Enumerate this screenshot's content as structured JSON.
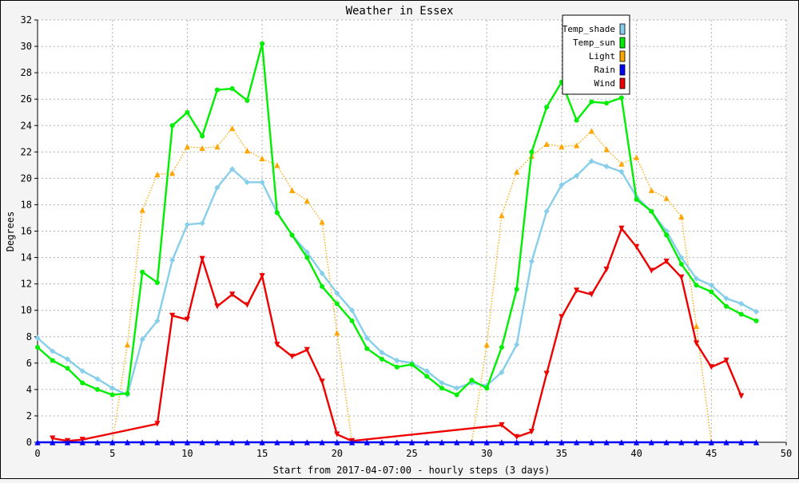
{
  "chart_data": {
    "type": "line",
    "title": "Weather in Essex",
    "xlabel": "Start from 2017-04-07:00 - hourly steps (3 days)",
    "ylabel": "Degrees",
    "xlim": [
      0,
      50
    ],
    "ylim": [
      0,
      32
    ],
    "x_ticks": [
      0,
      5,
      10,
      15,
      20,
      25,
      30,
      35,
      40,
      45,
      50
    ],
    "y_ticks": [
      0,
      2,
      4,
      6,
      8,
      10,
      12,
      14,
      16,
      18,
      20,
      22,
      24,
      26,
      28,
      30,
      32
    ],
    "grid": true,
    "legend_position": "top-right",
    "series": [
      {
        "name": "Temp_shade",
        "color": "#87ceeb",
        "marker": "diamond",
        "line_style": "solid",
        "x": [
          0,
          1,
          2,
          3,
          4,
          5,
          6,
          7,
          8,
          9,
          10,
          11,
          12,
          13,
          14,
          15,
          16,
          17,
          18,
          19,
          20,
          21,
          22,
          23,
          24,
          25,
          26,
          27,
          28,
          29,
          30,
          31,
          32,
          33,
          34,
          35,
          36,
          37,
          38,
          39,
          40,
          41,
          42,
          43,
          44,
          45,
          46,
          47,
          48
        ],
        "values": [
          7.9,
          6.9,
          6.3,
          5.4,
          4.8,
          4.1,
          3.6,
          7.8,
          9.2,
          13.8,
          16.5,
          16.6,
          19.3,
          20.7,
          19.7,
          19.7,
          17.4,
          15.7,
          14.4,
          12.8,
          11.3,
          10.0,
          7.9,
          6.8,
          6.2,
          6.0,
          5.4,
          4.5,
          4.1,
          4.5,
          4.3,
          5.3,
          7.4,
          13.7,
          17.5,
          19.5,
          20.2,
          21.3,
          20.9,
          20.5,
          18.6,
          17.5,
          16.0,
          14.0,
          12.4,
          11.9,
          10.9,
          10.5,
          9.9
        ]
      },
      {
        "name": "Temp_sun",
        "color": "#00ee00",
        "marker": "circle",
        "line_style": "solid",
        "x": [
          0,
          1,
          2,
          3,
          4,
          5,
          6,
          7,
          8,
          9,
          10,
          11,
          12,
          13,
          14,
          15,
          16,
          17,
          18,
          19,
          20,
          21,
          22,
          23,
          24,
          25,
          26,
          27,
          28,
          29,
          30,
          31,
          32,
          33,
          34,
          35,
          36,
          37,
          38,
          39,
          40,
          41,
          42,
          43,
          44,
          45,
          46,
          47,
          48
        ],
        "values": [
          7.2,
          6.2,
          5.6,
          4.5,
          4.0,
          3.6,
          3.7,
          12.9,
          12.1,
          24.0,
          25.0,
          23.2,
          26.7,
          26.8,
          25.9,
          30.2,
          17.4,
          15.7,
          14.0,
          11.8,
          10.5,
          9.2,
          7.1,
          6.3,
          5.7,
          5.9,
          5.0,
          4.1,
          3.6,
          4.7,
          4.1,
          7.2,
          11.6,
          22.0,
          25.4,
          27.3,
          24.4,
          25.8,
          25.7,
          26.1,
          18.4,
          17.5,
          15.7,
          13.5,
          11.9,
          11.4,
          10.3,
          9.7,
          9.2
        ]
      },
      {
        "name": "Light",
        "color": "#ffa500",
        "marker": "triangle-up",
        "line_style": "dotted",
        "x": [
          0,
          1,
          2,
          3,
          4,
          5,
          6,
          7,
          8,
          9,
          10,
          11,
          12,
          13,
          14,
          15,
          16,
          17,
          18,
          19,
          20,
          21,
          22,
          23,
          24,
          25,
          26,
          27,
          28,
          29,
          30,
          31,
          32,
          33,
          34,
          35,
          36,
          37,
          38,
          39,
          40,
          41,
          42,
          43,
          44,
          45,
          46,
          47,
          48
        ],
        "values": [
          0,
          0,
          0,
          0,
          0,
          0,
          7.4,
          17.6,
          20.3,
          20.4,
          22.4,
          22.3,
          22.4,
          23.8,
          22.1,
          21.5,
          21.0,
          19.1,
          18.3,
          16.7,
          8.3,
          0,
          0,
          0,
          0,
          0,
          0,
          0,
          0,
          0,
          7.4,
          17.2,
          20.5,
          21.7,
          22.6,
          22.4,
          22.5,
          23.6,
          22.2,
          21.1,
          21.6,
          19.1,
          18.5,
          17.1,
          8.8,
          0,
          0,
          0,
          0
        ]
      },
      {
        "name": "Rain",
        "color": "#0000ff",
        "marker": "triangle-up",
        "line_style": "solid",
        "x": [
          0,
          1,
          2,
          3,
          4,
          5,
          6,
          7,
          8,
          9,
          10,
          11,
          12,
          13,
          14,
          15,
          16,
          17,
          18,
          19,
          20,
          21,
          22,
          23,
          24,
          25,
          26,
          27,
          28,
          29,
          30,
          31,
          32,
          33,
          34,
          35,
          36,
          37,
          38,
          39,
          40,
          41,
          42,
          43,
          44,
          45,
          46,
          47,
          48
        ],
        "values": [
          0,
          0,
          0,
          0,
          0,
          0,
          0,
          0,
          0,
          0,
          0,
          0,
          0,
          0,
          0,
          0,
          0,
          0,
          0,
          0,
          0,
          0,
          0,
          0,
          0,
          0,
          0,
          0,
          0,
          0,
          0,
          0,
          0,
          0,
          0,
          0,
          0,
          0,
          0,
          0,
          0,
          0,
          0,
          0,
          0,
          0,
          0,
          0,
          0
        ]
      },
      {
        "name": "Wind",
        "color": "#ee0000",
        "marker": "triangle-down",
        "line_style": "solid",
        "x": [
          1,
          2,
          3,
          8,
          9,
          10,
          11,
          12,
          13,
          14,
          15,
          16,
          17,
          18,
          19,
          20,
          21,
          31,
          32,
          33,
          34,
          35,
          36,
          37,
          38,
          39,
          40,
          41,
          42,
          43,
          44,
          45,
          46,
          47
        ],
        "values": [
          0.3,
          0.1,
          0.2,
          1.4,
          9.6,
          9.3,
          13.9,
          10.3,
          11.2,
          10.4,
          12.6,
          7.4,
          6.5,
          7.0,
          4.6,
          0.6,
          0.1,
          1.3,
          0.4,
          0.8,
          5.2,
          9.5,
          11.5,
          11.2,
          13.1,
          16.2,
          14.8,
          13.0,
          13.7,
          12.5,
          7.5,
          5.7,
          6.2,
          3.5
        ]
      }
    ]
  }
}
